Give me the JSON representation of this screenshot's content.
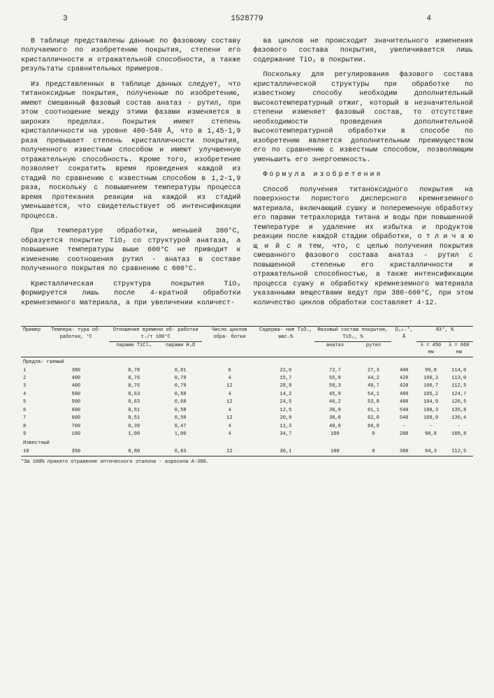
{
  "header": {
    "page_left": "3",
    "doc_number": "1528779",
    "page_right": "4"
  },
  "left_col": {
    "p1": "В таблице представлены данные по фазовому составу получаемого по изобретению покрытия, степени его кристалличности и отражательной способности, а также результаты сравнительных примеров.",
    "p2": "Из представленных в таблице данных следует, что титаноксидные покрытия, полученные по изобретению, имеют смешанный фазовый состав анатаз - рутил, при этом соотношение между этими фазами изменяется в широких пределах. Покрытия имеют степень кристалличности на уровне 400-540 Å, что в 1,45-1,9 раза превышает степень кристалличности покрытия, полученного известным способом и имеют улучшенную отражательную способность. Кроме того, изобретение позволяет сократить время проведения каждой из стадий по сравнению с известным способом в 1,2-1,9 раза, поскольку с повышением температуры процесса время протекания реакции на каждой из стадий уменьшается, что свидетельствует об интенсификации процесса.",
    "p3": "При температуре обработки, меньшей 380°С, образуется покрытие TiO₂ со структурой анатаза, а повышение температуры выше 600°С не приводит к изменению соотношения рутил - анатаз в составе полученного покрытия по сравнению с 600°С.",
    "p4": "Кристаллическая структура покрытия TiO₂ формируется лишь после 4-кратной обработки кремнеземного материала, а при увеличении количест-"
  },
  "right_col": {
    "p1": "ва циклов не происходит значительного изменения фазового состава покрытия, увеличивается лишь содержание TiO₂ в покрытии.",
    "p2": "Поскольку для регулирования фазового состава кристаллической структуры при обработке по известному способу необходим дополнительный высокотемпературный отжиг, который в незначительной степени изменяет фазовый состав, то отсутствие необходимости проведения дополнительной высокотемпературной обработки в способе по изобретению является дополнительным преимуществом его по сравнению с известным способом, позволяющим уменьшить его энергоемкость.",
    "formula_title": "Формула изобретения",
    "p3": "Способ получения титаноксидного покрытия на поверхности пористого дисперсного кремнеземного материала, включающий сушку и попеременную обработку его парами тетрахлорида титана и воды при повышенной температуре и удаление их избытка и продуктов реакции после каждой стадии обработки, о т л и ч а ю щ и й с я  тем, что, с целью получения покрытия смешанного фазового состава анатаз - рутил с повышенной степенью его кристалличности и отражательной способностью, а также интенсификации процесса сушку и обработку кремнеземного материала указанными веществами ведут при 380-600°С, при этом количество циклов обработки составляет 4-12."
  },
  "table": {
    "headers": {
      "c1": "Пример",
      "c2": "Темпера-\nтура об-\nработки,\n°С",
      "c3": "Отношение времени об-\nработки τᵢ/τ 180°С",
      "c3a": "парами\nTiCl₄",
      "c3b": "парами\nH₂O",
      "c4": "Число\nциклов\nобра-\nботки",
      "c5": "Содержа-\nние TiO₂,\nмас.%",
      "c6": "Фазовый состав\nпокрытия, TiO₂, %",
      "c6a": "анатаз",
      "c6b": "рутил",
      "c7": "Dₒₖᵣ*,\nÅ",
      "c8": "Rλ*, %",
      "c8a": "λ = 450 нм",
      "c8b": "λ = 660 нм"
    },
    "group1": "Предла-\nгаемый",
    "rows": [
      [
        "1",
        "380",
        "0,78",
        "0,81",
        "6",
        "21,0",
        "72,7",
        "27,3",
        "400",
        "99,8",
        "114,0"
      ],
      [
        "2",
        "400",
        "0,76",
        "0,79",
        "4",
        "15,7",
        "55,8",
        "44,2",
        "420",
        "100,3",
        "113,0"
      ],
      [
        "3",
        "400",
        "0,76",
        "0,79",
        "12",
        "28,9",
        "59,3",
        "40,7",
        "420",
        "100,7",
        "112,5"
      ],
      [
        "4",
        "500",
        "0,63",
        "0,68",
        "4",
        "14,2",
        "45,9",
        "54,1",
        "480",
        "105,2",
        "124,7"
      ],
      [
        "5",
        "500",
        "0,63",
        "0,68",
        "12",
        "24,5",
        "46,2",
        "53,8",
        "480",
        "104,9",
        "126,5"
      ],
      [
        "6",
        "600",
        "0,51",
        "0,58",
        "4",
        "12,5",
        "38,9",
        "61,1",
        "540",
        "108,3",
        "135,8"
      ],
      [
        "7",
        "600",
        "0,51",
        "0,58",
        "12",
        "20,9",
        "38,0",
        "62,0",
        "540",
        "109,9",
        "136,4"
      ],
      [
        "8",
        "700",
        "0,39",
        "0,47",
        "4",
        "11,3",
        "40,0",
        "60,0",
        "-",
        "-",
        "-"
      ],
      [
        "9",
        "180",
        "1,00",
        "1,00",
        "4",
        "34,7",
        "100",
        "0",
        "280",
        "90,8",
        "109,8"
      ]
    ],
    "group2": "Известный",
    "rows2": [
      [
        "10",
        "350",
        "0,80",
        "0,83",
        "12",
        "30,1",
        "100",
        "0",
        "380",
        "94,3",
        "112,5"
      ]
    ],
    "footnote": "*За 100% принято отражение оптического эталона - аэросила А-380."
  }
}
